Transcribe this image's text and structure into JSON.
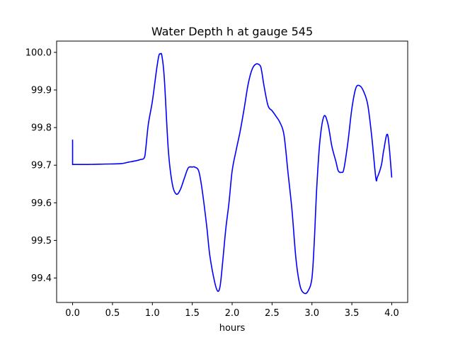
{
  "chart_data": {
    "type": "line",
    "title": "Water Depth h at gauge 545",
    "xlabel": "hours",
    "ylabel": "",
    "xlim": [
      -0.2,
      4.2
    ],
    "ylim": [
      99.335,
      100.03
    ],
    "xticks": [
      0.0,
      0.5,
      1.0,
      1.5,
      2.0,
      2.5,
      3.0,
      3.5,
      4.0
    ],
    "xtick_labels": [
      "0.0",
      "0.5",
      "1.0",
      "1.5",
      "2.0",
      "2.5",
      "3.0",
      "3.5",
      "4.0"
    ],
    "yticks": [
      99.4,
      99.5,
      99.6,
      99.7,
      99.8,
      99.9,
      100.0
    ],
    "ytick_labels": [
      "99.4",
      "99.5",
      "99.6",
      "99.7",
      "99.8",
      "99.9",
      "100.0"
    ],
    "grid": false,
    "series": [
      {
        "color": "#0000ff",
        "x": [
          0.0,
          0.0,
          0.02,
          0.2,
          0.4,
          0.6,
          0.7,
          0.8,
          0.85,
          0.9,
          0.92,
          0.95,
          1.0,
          1.05,
          1.08,
          1.1,
          1.12,
          1.15,
          1.2,
          1.25,
          1.3,
          1.35,
          1.4,
          1.45,
          1.5,
          1.53,
          1.58,
          1.62,
          1.68,
          1.72,
          1.78,
          1.82,
          1.85,
          1.88,
          1.92,
          1.96,
          2.0,
          2.05,
          2.1,
          2.15,
          2.2,
          2.25,
          2.3,
          2.35,
          2.37,
          2.4,
          2.45,
          2.5,
          2.55,
          2.6,
          2.65,
          2.7,
          2.75,
          2.8,
          2.85,
          2.9,
          2.95,
          3.0,
          3.03,
          3.06,
          3.1,
          3.15,
          3.2,
          3.25,
          3.3,
          3.33,
          3.37,
          3.4,
          3.45,
          3.5,
          3.55,
          3.6,
          3.65,
          3.7,
          3.75,
          3.8,
          3.82,
          3.87,
          3.9,
          3.95,
          4.0
        ],
        "y": [
          99.768,
          99.702,
          99.702,
          99.702,
          99.703,
          99.704,
          99.708,
          99.712,
          99.715,
          99.72,
          99.75,
          99.81,
          99.87,
          99.95,
          99.99,
          99.996,
          99.99,
          99.93,
          99.74,
          99.65,
          99.623,
          99.635,
          99.665,
          99.693,
          99.695,
          99.695,
          99.685,
          99.64,
          99.54,
          99.46,
          99.39,
          99.365,
          99.38,
          99.44,
          99.53,
          99.6,
          99.685,
          99.74,
          99.79,
          99.85,
          99.915,
          99.955,
          99.969,
          99.965,
          99.95,
          99.91,
          99.858,
          99.845,
          99.83,
          99.813,
          99.78,
          99.68,
          99.58,
          99.45,
          99.38,
          99.36,
          99.365,
          99.4,
          99.5,
          99.64,
          99.765,
          99.83,
          99.81,
          99.75,
          99.71,
          99.685,
          99.681,
          99.69,
          99.76,
          99.85,
          99.905,
          99.911,
          99.895,
          99.86,
          99.775,
          99.667,
          99.668,
          99.7,
          99.74,
          99.78,
          99.667
        ]
      }
    ]
  }
}
